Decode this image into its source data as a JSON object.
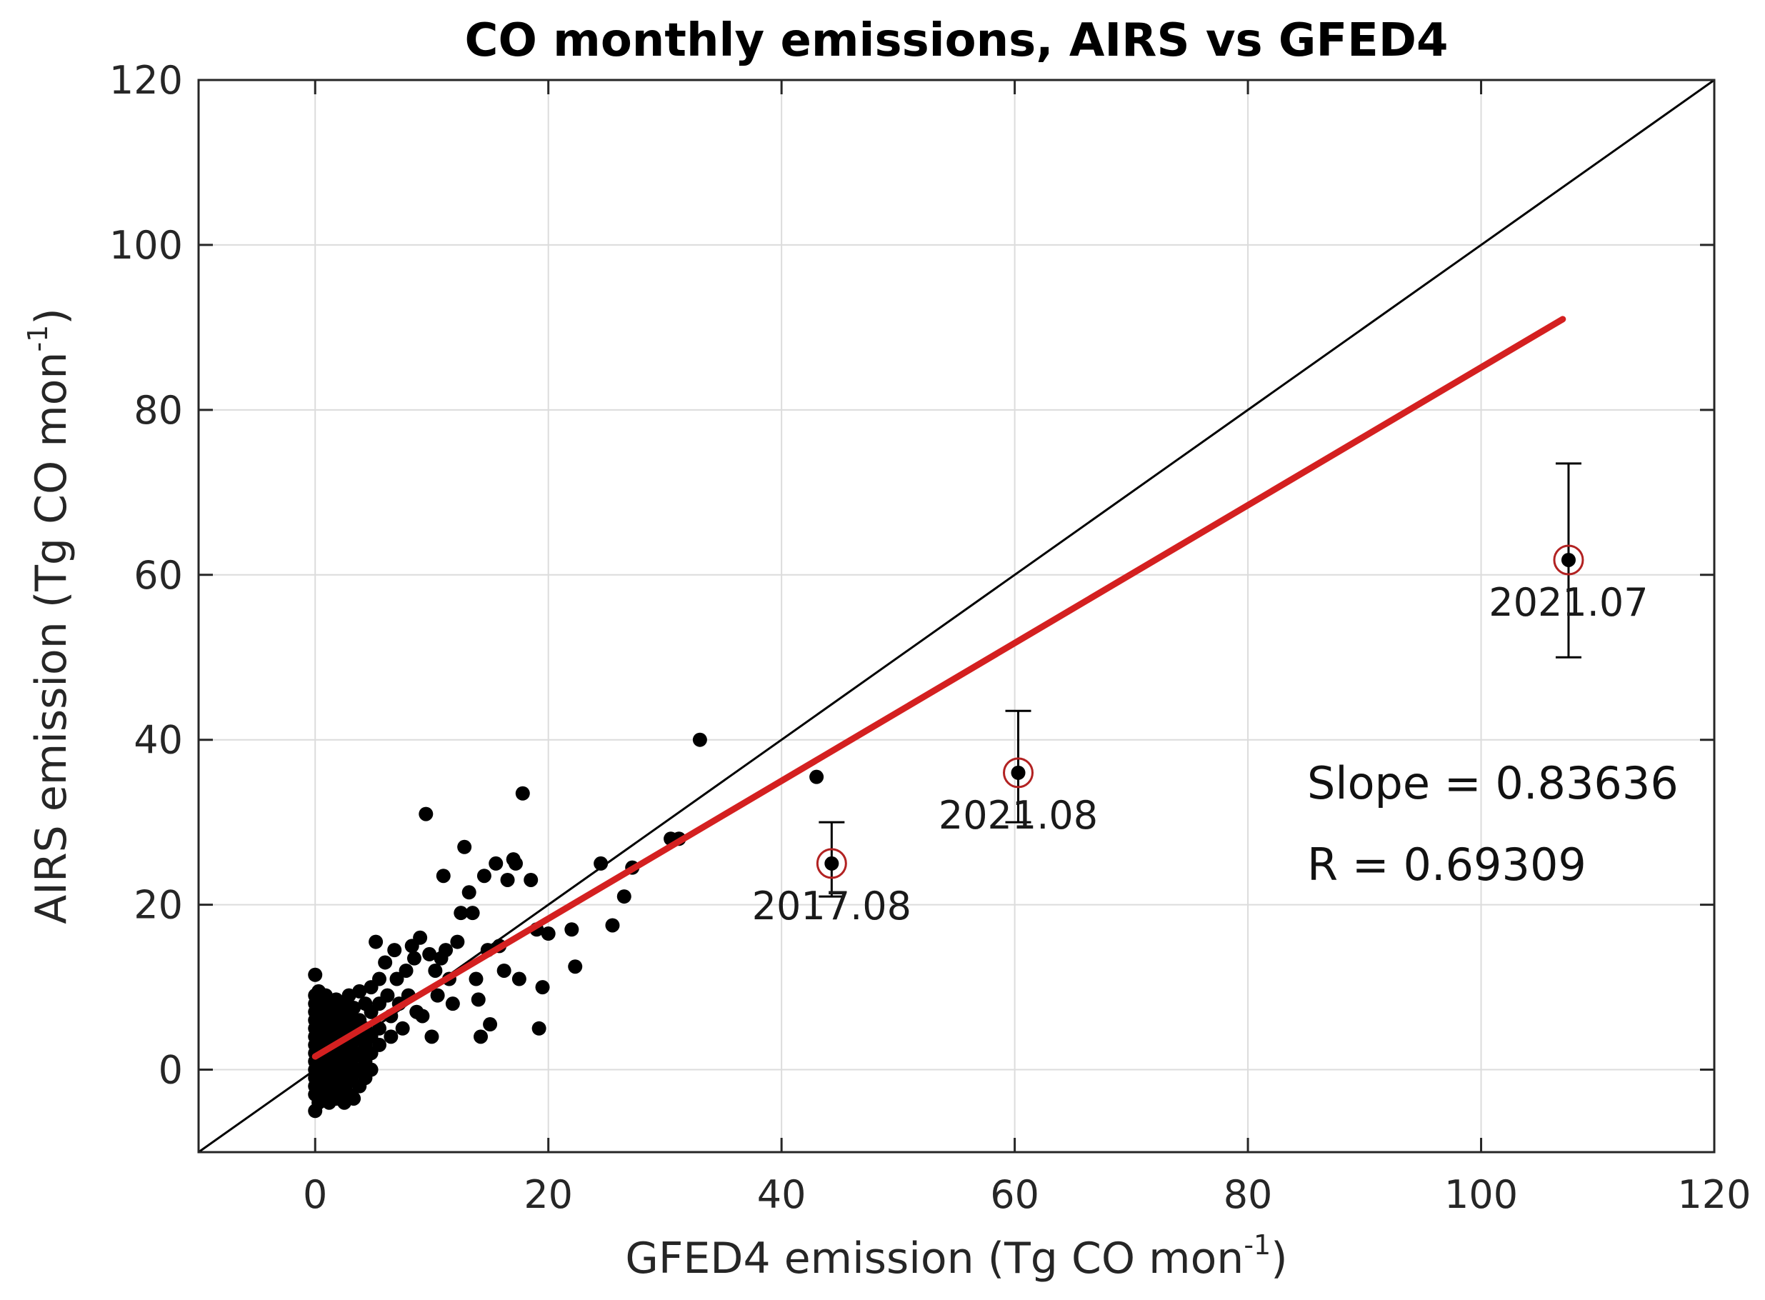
{
  "chart_data": {
    "type": "scatter",
    "title": "CO monthly emissions, AIRS vs GFED4",
    "xlabel": "GFED4 emission (Tg CO mon",
    "xlabel_sup": "-1",
    "xlabel_end": ")",
    "ylabel": "AIRS emission (Tg CO mon",
    "ylabel_sup": "-1",
    "ylabel_end": ")",
    "xlim": [
      -10,
      120
    ],
    "ylim": [
      -10,
      120
    ],
    "xticks": [
      0,
      20,
      40,
      60,
      80,
      100,
      120
    ],
    "yticks": [
      0,
      20,
      40,
      60,
      80,
      100,
      120
    ],
    "grid": true,
    "colors": {
      "points": "#000000",
      "fit_line": "#d42020",
      "reference_line": "#000000",
      "highlight_circle": "#b22222",
      "grid": "#dcdcdc",
      "axes": "#262626"
    },
    "reference_line": {
      "name": "1:1 line",
      "x": [
        -10,
        120
      ],
      "y": [
        -10,
        120
      ]
    },
    "fit_line": {
      "name": "linear fit",
      "x": [
        0,
        107
      ],
      "y": [
        1.6,
        91
      ]
    },
    "series": [
      {
        "name": "monthly emissions",
        "points": [
          [
            0,
            11.5
          ],
          [
            0,
            9
          ],
          [
            0,
            8
          ],
          [
            0,
            7
          ],
          [
            0,
            6
          ],
          [
            0,
            5
          ],
          [
            0,
            4
          ],
          [
            0,
            3
          ],
          [
            0,
            2
          ],
          [
            0,
            1
          ],
          [
            0,
            0
          ],
          [
            0,
            -1
          ],
          [
            0,
            -2
          ],
          [
            0,
            -3
          ],
          [
            0,
            -5
          ],
          [
            0.3,
            9.5
          ],
          [
            0.3,
            7.5
          ],
          [
            0.3,
            5.5
          ],
          [
            0.3,
            3.5
          ],
          [
            0.3,
            1.5
          ],
          [
            0.3,
            -0.5
          ],
          [
            0.3,
            -2.5
          ],
          [
            0.3,
            -4
          ],
          [
            0.6,
            8.5
          ],
          [
            0.6,
            6.5
          ],
          [
            0.6,
            4.5
          ],
          [
            0.6,
            2.5
          ],
          [
            0.6,
            0.5
          ],
          [
            0.6,
            -1.5
          ],
          [
            0.6,
            -3.5
          ],
          [
            0.9,
            9
          ],
          [
            0.9,
            7
          ],
          [
            0.9,
            5
          ],
          [
            0.9,
            3
          ],
          [
            0.9,
            1
          ],
          [
            0.9,
            -1
          ],
          [
            0.9,
            -3
          ],
          [
            1.2,
            8
          ],
          [
            1.2,
            6
          ],
          [
            1.2,
            4
          ],
          [
            1.2,
            2
          ],
          [
            1.2,
            0
          ],
          [
            1.2,
            -2
          ],
          [
            1.2,
            -4
          ],
          [
            1.5,
            7.5
          ],
          [
            1.5,
            5.5
          ],
          [
            1.5,
            3.5
          ],
          [
            1.5,
            1.5
          ],
          [
            1.5,
            -0.5
          ],
          [
            1.5,
            -2.5
          ],
          [
            1.8,
            8.5
          ],
          [
            1.8,
            6.5
          ],
          [
            1.8,
            4.5
          ],
          [
            1.8,
            2.5
          ],
          [
            1.8,
            0.5
          ],
          [
            1.8,
            -1.5
          ],
          [
            1.8,
            -3.5
          ],
          [
            2.1,
            7
          ],
          [
            2.1,
            5
          ],
          [
            2.1,
            3
          ],
          [
            2.1,
            1
          ],
          [
            2.1,
            -1
          ],
          [
            2.1,
            -3
          ],
          [
            2.5,
            8
          ],
          [
            2.5,
            6
          ],
          [
            2.5,
            4
          ],
          [
            2.5,
            2
          ],
          [
            2.5,
            0
          ],
          [
            2.5,
            -2
          ],
          [
            2.5,
            -4
          ],
          [
            2.9,
            9
          ],
          [
            2.9,
            6.5
          ],
          [
            2.9,
            4.5
          ],
          [
            2.9,
            2.5
          ],
          [
            2.9,
            0.5
          ],
          [
            2.9,
            -1.5
          ],
          [
            2.9,
            -3
          ],
          [
            3.3,
            7.5
          ],
          [
            3.3,
            5.5
          ],
          [
            3.3,
            3.5
          ],
          [
            3.3,
            1.5
          ],
          [
            3.3,
            -0.5
          ],
          [
            3.3,
            -3.5
          ],
          [
            3.8,
            9.5
          ],
          [
            3.8,
            6
          ],
          [
            3.8,
            4
          ],
          [
            3.8,
            2
          ],
          [
            3.8,
            0
          ],
          [
            3.8,
            -2
          ],
          [
            4.3,
            8
          ],
          [
            4.3,
            5
          ],
          [
            4.3,
            3
          ],
          [
            4.3,
            1
          ],
          [
            4.3,
            -1
          ],
          [
            4.8,
            10
          ],
          [
            4.8,
            7
          ],
          [
            4.8,
            4
          ],
          [
            4.8,
            2
          ],
          [
            4.8,
            0
          ],
          [
            5.2,
            15.5
          ],
          [
            5.5,
            11
          ],
          [
            5.5,
            8
          ],
          [
            5.5,
            5
          ],
          [
            5.5,
            3
          ],
          [
            6,
            13
          ],
          [
            6.2,
            9
          ],
          [
            6.5,
            6.5
          ],
          [
            6.5,
            4
          ],
          [
            6.8,
            14.5
          ],
          [
            7,
            11
          ],
          [
            7.2,
            8
          ],
          [
            7.5,
            5
          ],
          [
            7.8,
            12
          ],
          [
            8,
            9
          ],
          [
            8.3,
            15
          ],
          [
            8.5,
            13.5
          ],
          [
            8.7,
            7
          ],
          [
            9,
            16
          ],
          [
            9.2,
            6.5
          ],
          [
            9.5,
            31
          ],
          [
            9.8,
            14
          ],
          [
            10,
            4
          ],
          [
            10.3,
            12
          ],
          [
            10.5,
            9
          ],
          [
            10.8,
            13.5
          ],
          [
            11,
            23.5
          ],
          [
            11.2,
            14.5
          ],
          [
            11.5,
            11
          ],
          [
            11.8,
            8
          ],
          [
            12.2,
            15.5
          ],
          [
            12.5,
            19
          ],
          [
            12.8,
            27
          ],
          [
            13.2,
            21.5
          ],
          [
            13.5,
            19
          ],
          [
            13.8,
            11
          ],
          [
            14,
            8.5
          ],
          [
            14.2,
            4
          ],
          [
            14.5,
            23.5
          ],
          [
            14.8,
            14.5
          ],
          [
            15,
            5.5
          ],
          [
            15.5,
            25
          ],
          [
            15.8,
            15
          ],
          [
            16.2,
            12
          ],
          [
            16.5,
            23
          ],
          [
            17,
            25.5
          ],
          [
            17.2,
            25
          ],
          [
            17.5,
            11
          ],
          [
            17.8,
            33.5
          ],
          [
            18.5,
            23
          ],
          [
            19,
            17
          ],
          [
            19.2,
            5
          ],
          [
            19.5,
            10
          ],
          [
            20,
            16.5
          ],
          [
            22,
            17
          ],
          [
            22.3,
            12.5
          ],
          [
            24.5,
            25
          ],
          [
            25.5,
            17.5
          ],
          [
            26.5,
            21
          ],
          [
            27.2,
            24.5
          ],
          [
            30.5,
            28
          ],
          [
            31.2,
            28
          ],
          [
            33,
            40
          ],
          [
            43,
            35.5
          ],
          [
            44.3,
            25
          ],
          [
            60.3,
            36
          ],
          [
            107.5,
            61.8
          ]
        ]
      }
    ],
    "highlighted": [
      {
        "label": "2017.08",
        "x": 44.3,
        "y": 25,
        "err_low": 21,
        "err_high": 30
      },
      {
        "label": "2021.08",
        "x": 60.3,
        "y": 36,
        "err_low": 30,
        "err_high": 43.5
      },
      {
        "label": "2021.07",
        "x": 107.5,
        "y": 61.8,
        "err_low": 50,
        "err_high": 73.5
      }
    ],
    "annotations": {
      "slope": "Slope = 0.83636",
      "r": "R = 0.69309"
    }
  }
}
